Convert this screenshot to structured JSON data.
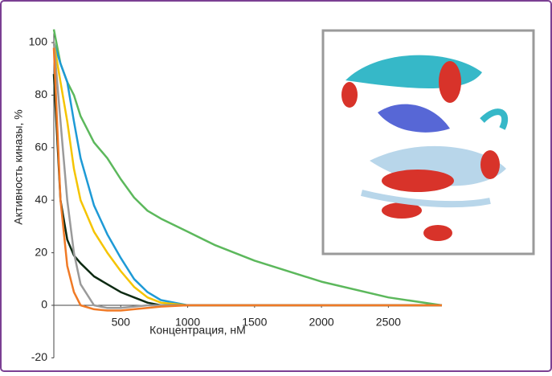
{
  "chart_data": {
    "type": "line",
    "y_label": "Активность киназы, %",
    "x_label": "Концентрация, нМ",
    "x": [
      0,
      50,
      100,
      150,
      200,
      300,
      400,
      500,
      600,
      700,
      800,
      1000,
      1200,
      1500,
      2000,
      2500,
      2900
    ],
    "series": [
      {
        "color": "#5cb85c",
        "values": [
          105,
          92,
          85,
          80,
          72,
          62,
          56,
          48,
          41,
          36,
          33,
          28,
          23,
          17,
          9,
          3,
          0
        ]
      },
      {
        "color": "#1e9ad6",
        "values": [
          100,
          92,
          85,
          70,
          56,
          38,
          27,
          18,
          10,
          5,
          2,
          0,
          0,
          0,
          0,
          0,
          0
        ]
      },
      {
        "color": "#f5c400",
        "values": [
          100,
          85,
          70,
          52,
          40,
          28,
          20,
          13,
          7,
          3,
          1,
          0,
          0,
          0,
          0,
          0,
          0
        ]
      },
      {
        "color": "#0d2a12",
        "values": [
          88,
          40,
          25,
          19,
          16,
          11,
          8,
          5,
          3,
          1,
          0,
          0,
          0,
          0,
          0,
          0,
          0
        ]
      },
      {
        "color": "#9a9a9a",
        "values": [
          100,
          70,
          40,
          20,
          8,
          0,
          -1,
          -1,
          -0.5,
          0,
          0,
          0,
          0,
          0,
          0,
          0,
          0
        ]
      },
      {
        "color": "#f07a26",
        "values": [
          98,
          40,
          15,
          5,
          0,
          -1.5,
          -2,
          -2,
          -1.5,
          -1,
          -0.5,
          0,
          0,
          0,
          0,
          0,
          0
        ]
      }
    ],
    "xlim": [
      0,
      2900
    ],
    "ylim": [
      -20,
      105
    ],
    "xticks": [
      500,
      1000,
      1500,
      2000,
      2500
    ],
    "yticks": [
      -20,
      0,
      20,
      40,
      60,
      80,
      100
    ]
  }
}
